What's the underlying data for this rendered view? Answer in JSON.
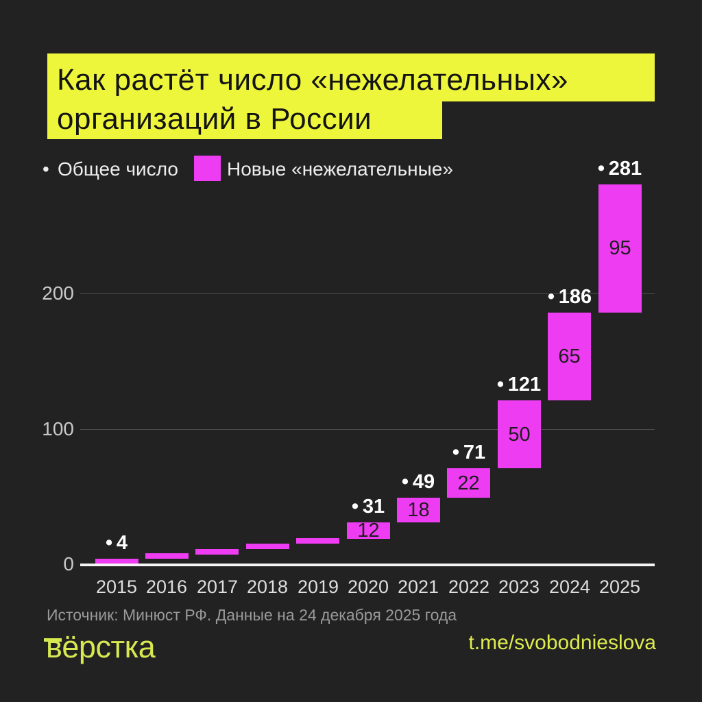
{
  "title": {
    "line1": "Как растёт число «нежелательных»",
    "line2": "организаций в России",
    "background": "#eef63c",
    "text_color": "#141414"
  },
  "legend": {
    "total_marker": "•",
    "total_label": "Общее число",
    "new_label": "Новые «нежелательные»",
    "swatch_color": "#ee3cf2"
  },
  "chart_data": {
    "type": "bar",
    "subtype": "waterfall",
    "categories": [
      "2015",
      "2016",
      "2017",
      "2018",
      "2019",
      "2020",
      "2021",
      "2022",
      "2023",
      "2024",
      "2025"
    ],
    "series": [
      {
        "name": "Общее число (cumulative totals)",
        "values": [
          4,
          7,
          11,
          15,
          19,
          31,
          49,
          71,
          121,
          186,
          281
        ]
      },
      {
        "name": "Новые «нежелательные» (new per year)",
        "values": [
          4,
          3,
          4,
          4,
          4,
          12,
          18,
          22,
          50,
          65,
          95
        ]
      }
    ],
    "total_labels": [
      "• 4",
      null,
      null,
      null,
      null,
      "• 31",
      "• 49",
      "• 71",
      "• 121",
      "• 186",
      "• 281"
    ],
    "bar_value_labels": [
      null,
      null,
      null,
      null,
      null,
      "12",
      "18",
      "22",
      "50",
      "65",
      "95"
    ],
    "y_ticks": [
      0,
      100,
      200
    ],
    "ylim": [
      0,
      300
    ],
    "grid": true,
    "legend_position": "top-left",
    "bar_color": "#ee3cf2",
    "axis_color": "#f5f5f5",
    "grid_color": "#4a4a4a"
  },
  "footer": {
    "source": "Источник: Минюст РФ. Данные на 24 декабря 2025 года",
    "logo": "вёрстка",
    "link": "t.me/svobodnieslova"
  },
  "colors": {
    "background": "#222222",
    "accent_magenta": "#ee3cf2",
    "accent_yellow": "#eef63c",
    "logo_yellow_green": "#d7e850"
  }
}
